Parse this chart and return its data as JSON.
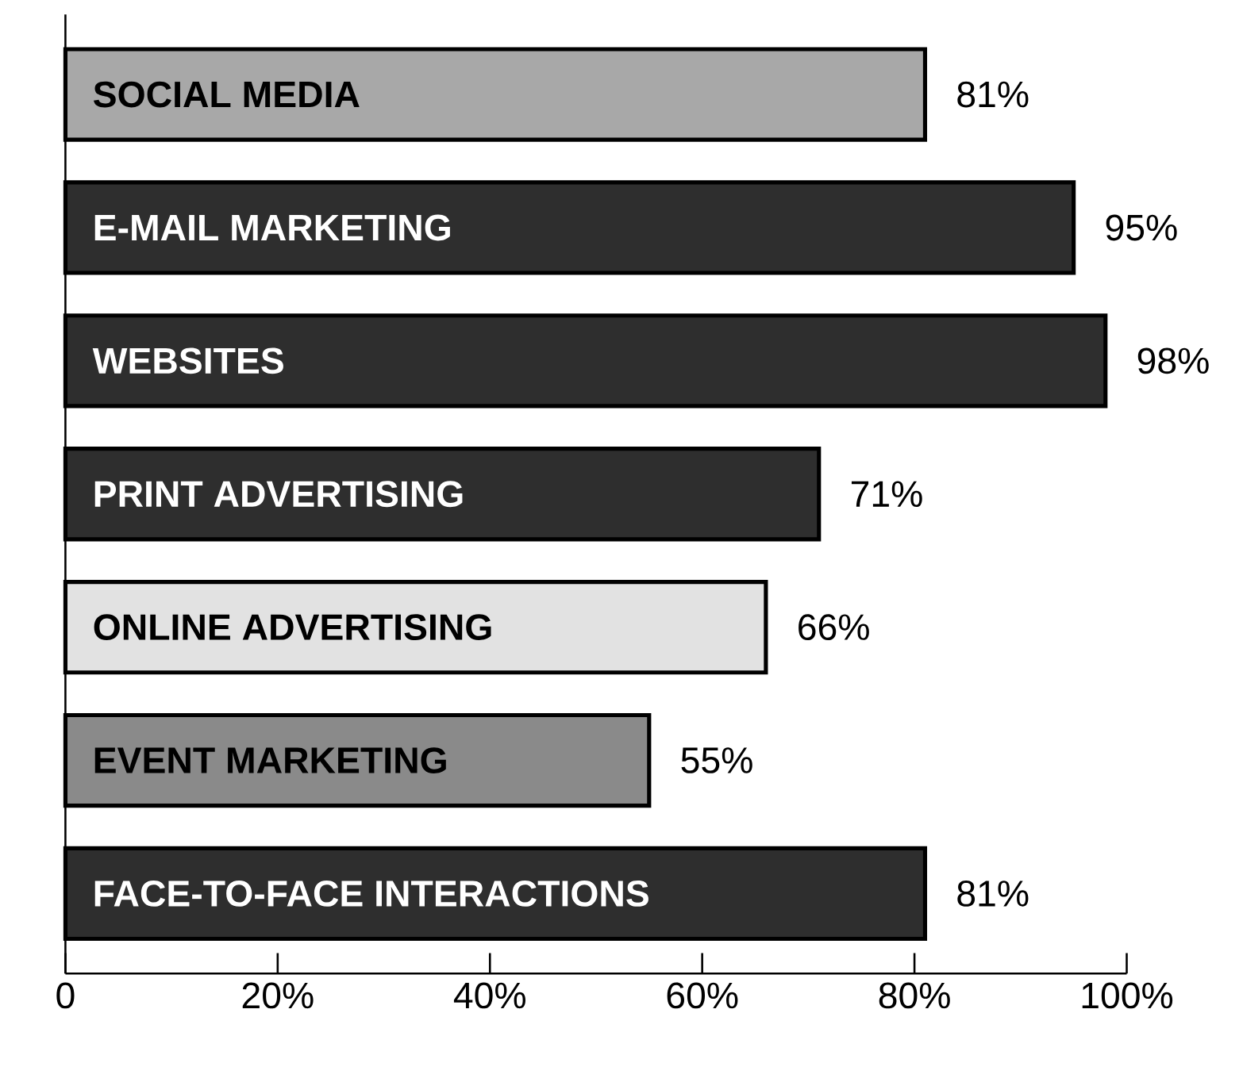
{
  "chart_data": {
    "type": "bar",
    "orientation": "horizontal",
    "categories": [
      "SOCIAL MEDIA",
      "E-MAIL MARKETING",
      "WEBSITES",
      "PRINT ADVERTISING",
      "ONLINE ADVERTISING",
      "EVENT MARKETING",
      "FACE-TO-FACE INTERACTIONS"
    ],
    "values": [
      81,
      95,
      98,
      71,
      66,
      55,
      81
    ],
    "value_labels": [
      "81%",
      "95%",
      "98%",
      "71%",
      "66%",
      "55%",
      "81%"
    ],
    "colors": [
      "#a8a8a8",
      "#2e2e2e",
      "#2e2e2e",
      "#2e2e2e",
      "#e2e2e2",
      "#8a8a8a",
      "#2e2e2e"
    ],
    "xlim": [
      0,
      100
    ],
    "xticks": [
      0,
      {
        "value": 20,
        "label": "20%"
      },
      {
        "value": 40,
        "label": "40%"
      },
      {
        "value": 60,
        "label": "60%"
      },
      {
        "value": 80,
        "label": "80%"
      },
      {
        "value": 100,
        "label": "100%"
      }
    ],
    "grid": false
  }
}
